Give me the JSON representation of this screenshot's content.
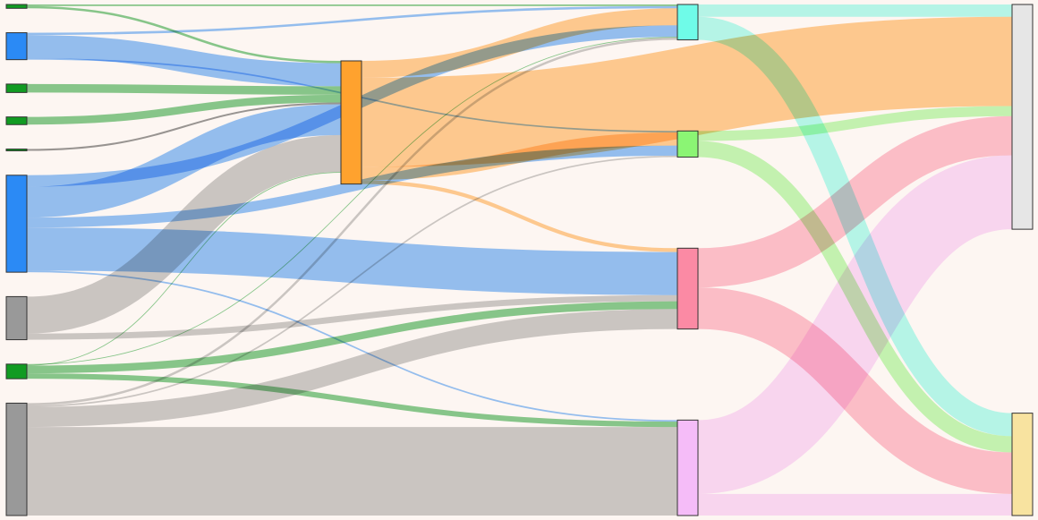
{
  "chart_data": {
    "type": "sankey",
    "colors": {
      "background": "#fdf6f2",
      "node_stroke": "#333333",
      "blue": "#2b8af5",
      "green": "#119b22",
      "gray": "#999999",
      "orange": "#ffa22e",
      "cyan": "#6ffbe8",
      "light_green": "#8bf574",
      "pink": "#fb8aa4",
      "violet": "#f5bcf8",
      "light_gray": "#e6e6e6",
      "pale_yellow": "#f8e3a0"
    },
    "nodes": [
      {
        "id": "s0",
        "color": "#119b22",
        "col": 0
      },
      {
        "id": "s1",
        "color": "#2b8af5",
        "col": 0
      },
      {
        "id": "s2",
        "color": "#119b22",
        "col": 0
      },
      {
        "id": "s3",
        "color": "#119b22",
        "col": 0
      },
      {
        "id": "s4",
        "color": "#119b22",
        "col": 0
      },
      {
        "id": "s5",
        "color": "#2b8af5",
        "col": 0
      },
      {
        "id": "s6",
        "color": "#999999",
        "col": 0
      },
      {
        "id": "s7",
        "color": "#119b22",
        "col": 0
      },
      {
        "id": "s8",
        "color": "#999999",
        "col": 0
      },
      {
        "id": "m0",
        "color": "#ffa22e",
        "col": 1
      },
      {
        "id": "c0",
        "color": "#6ffbe8",
        "col": 2
      },
      {
        "id": "c1",
        "color": "#8bf574",
        "col": 2
      },
      {
        "id": "c2",
        "color": "#fb8aa4",
        "col": 2
      },
      {
        "id": "c3",
        "color": "#f5bcf8",
        "col": 2
      },
      {
        "id": "t0",
        "color": "#e6e6e6",
        "col": 3
      },
      {
        "id": "t1",
        "color": "#f8e3a0",
        "col": 3
      }
    ],
    "links": [
      {
        "source": "s0",
        "target": "m0",
        "value": 0.3,
        "color": "#119b22"
      },
      {
        "source": "s0",
        "target": "c0",
        "value": 0.2,
        "color": "#119b22"
      },
      {
        "source": "s1",
        "target": "m0",
        "value": 3.0,
        "color": "#2b8af5"
      },
      {
        "source": "s1",
        "target": "c0",
        "value": 0.3,
        "color": "#2b8af5"
      },
      {
        "source": "s1",
        "target": "c1",
        "value": 0.2,
        "color": "#2b8af5"
      },
      {
        "source": "s2",
        "target": "m0",
        "value": 1.1,
        "color": "#119b22"
      },
      {
        "source": "s3",
        "target": "m0",
        "value": 1.0,
        "color": "#119b22"
      },
      {
        "source": "s4",
        "target": "m0",
        "value": 0.1,
        "color": "#333333"
      },
      {
        "source": "s5",
        "target": "m0",
        "value": 4.0,
        "color": "#2b8af5"
      },
      {
        "source": "s5",
        "target": "c0",
        "value": 1.5,
        "color": "#2b8af5"
      },
      {
        "source": "s5",
        "target": "c1",
        "value": 1.3,
        "color": "#2b8af5"
      },
      {
        "source": "s5",
        "target": "c2",
        "value": 5.6,
        "color": "#2b8af5"
      },
      {
        "source": "s5",
        "target": "c3",
        "value": 0.2,
        "color": "#2b8af5"
      },
      {
        "source": "s6",
        "target": "m0",
        "value": 4.8,
        "color": "#999999"
      },
      {
        "source": "s6",
        "target": "c2",
        "value": 0.8,
        "color": "#999999"
      },
      {
        "source": "s7",
        "target": "m0",
        "value": 0.1,
        "color": "#119b22"
      },
      {
        "source": "s7",
        "target": "c0",
        "value": 0.1,
        "color": "#119b22"
      },
      {
        "source": "s7",
        "target": "c2",
        "value": 1.0,
        "color": "#119b22"
      },
      {
        "source": "s7",
        "target": "c3",
        "value": 0.7,
        "color": "#119b22"
      },
      {
        "source": "s8",
        "target": "c0",
        "value": 0.3,
        "color": "#999999"
      },
      {
        "source": "s8",
        "target": "c1",
        "value": 0.2,
        "color": "#999999"
      },
      {
        "source": "s8",
        "target": "c2",
        "value": 2.6,
        "color": "#999999"
      },
      {
        "source": "s8",
        "target": "c3",
        "value": 11.5,
        "color": "#999999"
      },
      {
        "source": "m0",
        "target": "c0",
        "value": 2.2,
        "color": "#ffa22e"
      },
      {
        "source": "m0",
        "target": "c1",
        "value": 1.7,
        "color": "#ffa22e"
      },
      {
        "source": "m0",
        "target": "c2",
        "value": 0.5,
        "color": "#ffa22e"
      },
      {
        "source": "m0",
        "target": "t0",
        "value": 11.6,
        "color": "#ffa22e"
      },
      {
        "source": "c0",
        "target": "t0",
        "value": 1.6,
        "color": "#6ffbe8"
      },
      {
        "source": "c0",
        "target": "t1",
        "value": 3.0,
        "color": "#6ffbe8"
      },
      {
        "source": "c1",
        "target": "t0",
        "value": 1.3,
        "color": "#8bf574"
      },
      {
        "source": "c1",
        "target": "t1",
        "value": 2.1,
        "color": "#8bf574"
      },
      {
        "source": "c2",
        "target": "t0",
        "value": 5.1,
        "color": "#fb8aa4"
      },
      {
        "source": "c2",
        "target": "t1",
        "value": 5.4,
        "color": "#fb8aa4"
      },
      {
        "source": "c3",
        "target": "t0",
        "value": 9.6,
        "color": "#f5bcf8"
      },
      {
        "source": "c3",
        "target": "t1",
        "value": 2.8,
        "color": "#f5bcf8"
      }
    ]
  }
}
